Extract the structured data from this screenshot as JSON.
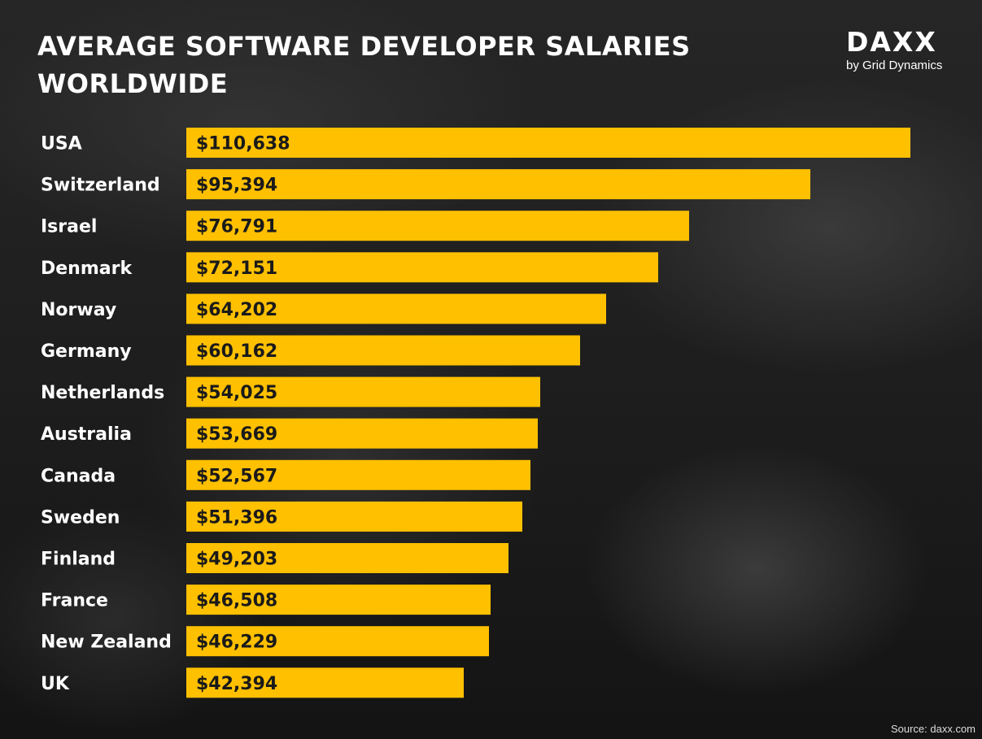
{
  "title": "AVERAGE SOFTWARE DEVELOPER SALARIES WORLDWIDE",
  "logo": {
    "word": "DAXX",
    "tagline": "by Grid Dynamics"
  },
  "source": "Source: daxx.com",
  "colors": {
    "bar": "#FFC000",
    "bar_label": "#1a1a1a",
    "category_label": "#ffffff",
    "background": "#1e1e1e"
  },
  "chart_data": {
    "type": "bar",
    "orientation": "horizontal",
    "title": "AVERAGE SOFTWARE DEVELOPER SALARIES WORLDWIDE",
    "categories": [
      "USA",
      "Switzerland",
      "Israel",
      "Denmark",
      "Norway",
      "Germany",
      "Netherlands",
      "Australia",
      "Canada",
      "Sweden",
      "Finland",
      "France",
      "New Zealand",
      "UK"
    ],
    "values": [
      110638,
      95394,
      76791,
      72151,
      64202,
      60162,
      54025,
      53669,
      52567,
      51396,
      49203,
      46508,
      46229,
      42394
    ],
    "value_labels": [
      "$110,638",
      "$95,394",
      "$76,791",
      "$72,151",
      "$64,202",
      "$60,162",
      "$54,025",
      "$53,669",
      "$52,567",
      "$51,396",
      "$49,203",
      "$46,508",
      "$46,229",
      "$42,394"
    ],
    "xlabel": "",
    "ylabel": "",
    "xlim": [
      0,
      110638
    ],
    "grid": false,
    "legend": "none"
  }
}
